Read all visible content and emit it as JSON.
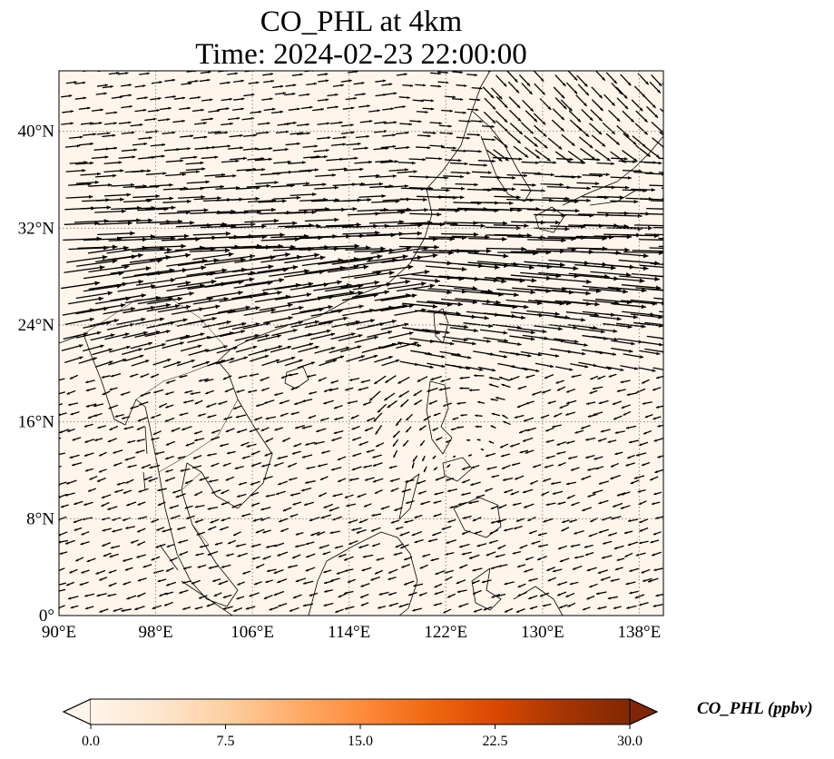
{
  "title": {
    "line1": "CO_PHL at 4km",
    "line2": "Time: 2024-02-23 22:00:00"
  },
  "map": {
    "lon_range": [
      90,
      140
    ],
    "lat_range": [
      0,
      45
    ],
    "x_ticks": [
      {
        "value": 90,
        "label": "90°E"
      },
      {
        "value": 98,
        "label": "98°E"
      },
      {
        "value": 106,
        "label": "106°E"
      },
      {
        "value": 114,
        "label": "114°E"
      },
      {
        "value": 122,
        "label": "122°E"
      },
      {
        "value": 130,
        "label": "130°E"
      },
      {
        "value": 138,
        "label": "138°E"
      }
    ],
    "y_ticks": [
      {
        "value": 0,
        "label": "0°"
      },
      {
        "value": 8,
        "label": "8°N"
      },
      {
        "value": 16,
        "label": "16°N"
      },
      {
        "value": 24,
        "label": "24°N"
      },
      {
        "value": 32,
        "label": "32°N"
      },
      {
        "value": 40,
        "label": "40°N"
      }
    ],
    "gridlines": "dotted",
    "background_color": "#fff5eb",
    "coastline_color": "#000000",
    "vector_color": "#000000"
  },
  "colorbar": {
    "label": "CO_PHL (ppbv)",
    "min": 0.0,
    "max": 30.0,
    "ticks": [
      "0.0",
      "7.5",
      "15.0",
      "22.5",
      "30.0"
    ],
    "extend": "both",
    "colormap": [
      "#fff5eb",
      "#fee6ce",
      "#fdd0a2",
      "#fdae6b",
      "#fd8d3c",
      "#f16913",
      "#d94801",
      "#a63603",
      "#7f2704"
    ]
  }
}
